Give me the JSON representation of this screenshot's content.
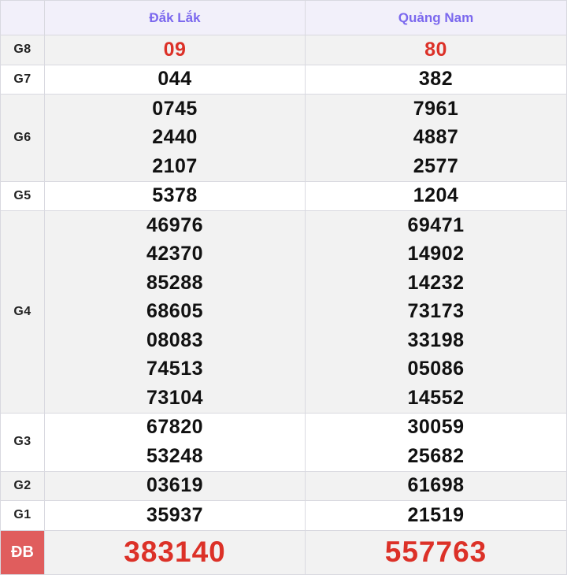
{
  "table": {
    "columns": [
      {
        "id": "dak-lak",
        "label": "Đắk Lắk"
      },
      {
        "id": "quang-nam",
        "label": "Quảng Nam"
      }
    ],
    "rows": [
      {
        "id": "g8",
        "label": "G8",
        "style": "red",
        "values": [
          [
            "09"
          ],
          [
            "80"
          ]
        ]
      },
      {
        "id": "g7",
        "label": "G7",
        "style": "normal",
        "values": [
          [
            "044"
          ],
          [
            "382"
          ]
        ]
      },
      {
        "id": "g6",
        "label": "G6",
        "style": "normal",
        "values": [
          [
            "0745",
            "2440",
            "2107"
          ],
          [
            "7961",
            "4887",
            "2577"
          ]
        ]
      },
      {
        "id": "g5",
        "label": "G5",
        "style": "normal",
        "values": [
          [
            "5378"
          ],
          [
            "1204"
          ]
        ]
      },
      {
        "id": "g4",
        "label": "G4",
        "style": "normal",
        "values": [
          [
            "46976",
            "42370",
            "85288",
            "68605",
            "08083",
            "74513",
            "73104"
          ],
          [
            "69471",
            "14902",
            "14232",
            "73173",
            "33198",
            "05086",
            "14552"
          ]
        ]
      },
      {
        "id": "g3",
        "label": "G3",
        "style": "normal",
        "values": [
          [
            "67820",
            "53248"
          ],
          [
            "30059",
            "25682"
          ]
        ]
      },
      {
        "id": "g2",
        "label": "G2",
        "style": "normal",
        "values": [
          [
            "03619"
          ],
          [
            "61698"
          ]
        ]
      },
      {
        "id": "g1",
        "label": "G1",
        "style": "normal",
        "values": [
          [
            "35937"
          ],
          [
            "21519"
          ]
        ]
      },
      {
        "id": "db",
        "label": "ĐB",
        "style": "special",
        "values": [
          [
            "383140"
          ],
          [
            "557763"
          ]
        ]
      }
    ],
    "colors": {
      "accent": "#7b68ee",
      "header_bg": "#f2f0fa",
      "alt_row_bg": "#f2f2f2",
      "row_bg": "#ffffff",
      "border": "#d9d9e0",
      "red_value": "#dc3128",
      "special_label_bg": "#e05d5d",
      "special_label_text": "#ffffff",
      "value_text": "#111111",
      "label_text": "#222222"
    }
  }
}
